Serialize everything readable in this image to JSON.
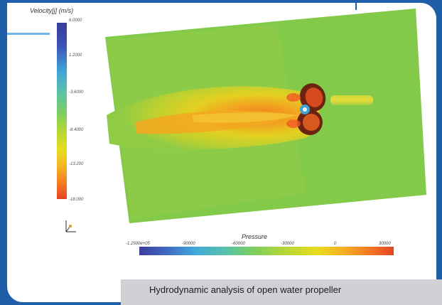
{
  "figure": {
    "velocity_legend_title": "Velocity[j] (m/s)",
    "velocity_ticks": [
      "6.0000",
      "1.2000",
      "-3.6000",
      "-8.4000",
      "-13.200",
      "-18.000"
    ],
    "pressure_legend_title": "Pressure",
    "pressure_ticks": [
      "-1.2500e+05",
      "-90000",
      "-60000",
      "-30000",
      "0",
      "30000"
    ],
    "caption": "Hydrodynamic analysis of open water propeller"
  },
  "colors": {
    "frame_blue": "#1f5fa9",
    "caption_bg": "#cfd1d4"
  }
}
